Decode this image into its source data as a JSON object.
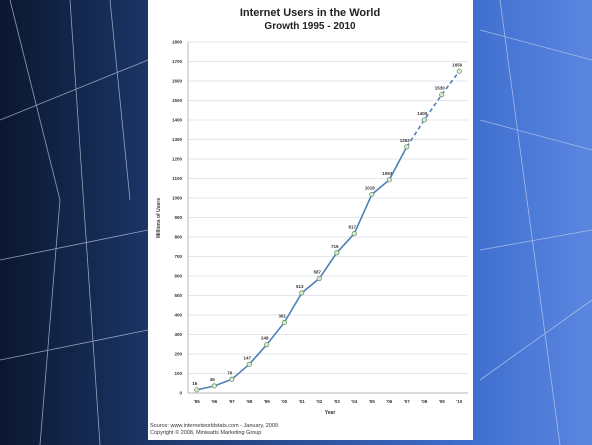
{
  "chart_data": {
    "type": "line",
    "title": "Internet Users in the World",
    "subtitle": "Growth 1995 - 2010",
    "y_label": "Millions of Users",
    "x_label": "Year",
    "categories": [
      "'95",
      "'96",
      "'97",
      "'98",
      "'99",
      "'00",
      "'01",
      "'02",
      "'03",
      "'04",
      "'05",
      "'06",
      "'07",
      "'08",
      "'09",
      "'10"
    ],
    "series": [
      {
        "name": "Internet Users",
        "color": "#4f7fb8",
        "values": [
          16,
          36,
          70,
          147,
          248,
          361,
          513,
          587,
          719,
          817,
          1018,
          1093,
          1262,
          1400,
          1530,
          1650
        ]
      }
    ],
    "dashed_from_index": 12,
    "ylim": [
      0,
      1800
    ],
    "yticks": [
      0,
      100,
      200,
      300,
      400,
      500,
      600,
      700,
      800,
      900,
      1000,
      1100,
      1200,
      1300,
      1400,
      1500,
      1600,
      1700,
      1800
    ],
    "grid": true,
    "source": [
      "Source: www.internetworldstats.com - January, 2009",
      "Copyright © 2008, Miniwatts Marketing Group"
    ]
  }
}
